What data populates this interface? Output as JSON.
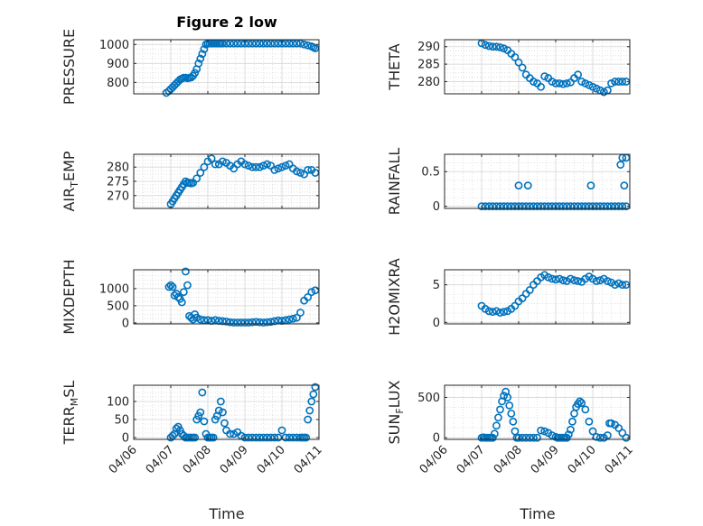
{
  "figure": {
    "title": "Figure 2 low",
    "xlabel": "Time"
  },
  "colors": {
    "marker": "#0072BD",
    "axis": "#262626",
    "grid": "#d6d6d6"
  },
  "chart_data": [
    {
      "type": "scatter",
      "ylabel": "PRESSURE",
      "ylim": [
        740,
        1025
      ],
      "yticks": [
        800,
        900,
        1000
      ],
      "xticks": [
        "04/06",
        "04/07",
        "04/08",
        "04/09",
        "04/10",
        "04/11"
      ],
      "show_xticklabels": false,
      "grid": true,
      "x": [
        6.88,
        6.95,
        7.0,
        7.05,
        7.1,
        7.15,
        7.2,
        7.25,
        7.3,
        7.35,
        7.4,
        7.45,
        7.5,
        7.55,
        7.6,
        7.65,
        7.7,
        7.75,
        7.8,
        7.85,
        7.9,
        7.95,
        8.0,
        8.05,
        8.1,
        8.15,
        8.2,
        8.25,
        8.3,
        8.35,
        8.4,
        8.5,
        8.6,
        8.7,
        8.8,
        8.9,
        9.0,
        9.1,
        9.2,
        9.3,
        9.4,
        9.5,
        9.6,
        9.7,
        9.8,
        9.9,
        10.0,
        10.1,
        10.2,
        10.3,
        10.4,
        10.5,
        10.6,
        10.7,
        10.8,
        10.85,
        10.9
      ],
      "y": [
        745,
        755,
        765,
        775,
        785,
        795,
        805,
        815,
        820,
        825,
        825,
        822,
        824,
        826,
        835,
        850,
        870,
        900,
        925,
        950,
        975,
        1000,
        1005,
        1005,
        1005,
        1005,
        1005,
        1005,
        1005,
        1005,
        1005,
        1005,
        1005,
        1005,
        1005,
        1005,
        1005,
        1005,
        1005,
        1005,
        1005,
        1005,
        1005,
        1005,
        1005,
        1005,
        1005,
        1005,
        1005,
        1005,
        1005,
        1005,
        1000,
        995,
        990,
        985,
        980
      ]
    },
    {
      "type": "scatter",
      "ylabel": "THETA",
      "ylim": [
        276.5,
        292
      ],
      "yticks": [
        280,
        285,
        290
      ],
      "xticks": [
        "04/06",
        "04/07",
        "04/08",
        "04/09",
        "04/10",
        "04/11"
      ],
      "show_xticklabels": false,
      "grid": true,
      "x": [
        7.0,
        7.1,
        7.2,
        7.3,
        7.4,
        7.5,
        7.6,
        7.7,
        7.8,
        7.9,
        8.0,
        8.1,
        8.2,
        8.3,
        8.4,
        8.5,
        8.6,
        8.7,
        8.8,
        8.9,
        9.0,
        9.1,
        9.2,
        9.3,
        9.4,
        9.5,
        9.6,
        9.7,
        9.8,
        9.9,
        10.0,
        10.1,
        10.2,
        10.3,
        10.4,
        10.5,
        10.6,
        10.7,
        10.8,
        10.9
      ],
      "y": [
        291,
        290.5,
        290.2,
        290,
        290,
        289.8,
        289.5,
        289,
        288,
        287,
        285.5,
        284,
        282,
        281,
        280,
        279.5,
        278.5,
        281.5,
        281,
        280,
        279.5,
        279.5,
        279.3,
        279.5,
        279.8,
        281,
        282,
        280,
        279.5,
        279,
        278.5,
        278,
        277.5,
        277,
        277.5,
        279.5,
        280,
        280,
        280,
        280
      ]
    },
    {
      "type": "scatter",
      "ylabel": "AIR_TEMP",
      "ylim": [
        265.5,
        284.5
      ],
      "yticks": [
        270,
        275,
        280
      ],
      "xticks": [
        "04/06",
        "04/07",
        "04/08",
        "04/09",
        "04/10",
        "04/11"
      ],
      "show_xticklabels": false,
      "grid": true,
      "x": [
        7.0,
        7.05,
        7.1,
        7.15,
        7.2,
        7.25,
        7.3,
        7.35,
        7.4,
        7.45,
        7.5,
        7.55,
        7.6,
        7.7,
        7.8,
        7.9,
        8.0,
        8.1,
        8.2,
        8.3,
        8.4,
        8.5,
        8.6,
        8.7,
        8.8,
        8.9,
        9.0,
        9.1,
        9.2,
        9.3,
        9.4,
        9.5,
        9.6,
        9.7,
        9.8,
        9.9,
        10.0,
        10.1,
        10.2,
        10.3,
        10.4,
        10.5,
        10.6,
        10.7,
        10.8,
        10.9
      ],
      "y": [
        267,
        268,
        269,
        270,
        271,
        272,
        273,
        274,
        275,
        274.5,
        274.5,
        274.3,
        274.5,
        276,
        278,
        280,
        282,
        283,
        281,
        281,
        282,
        281.5,
        280.5,
        279.5,
        281,
        282,
        281,
        280.5,
        280,
        280,
        280,
        280.5,
        281,
        280.5,
        279,
        279.5,
        280,
        280.5,
        281,
        279.5,
        278.5,
        278,
        277.5,
        279,
        279,
        278
      ]
    },
    {
      "type": "scatter",
      "ylabel": "RAINFALL",
      "ylim": [
        -0.03,
        0.75
      ],
      "yticks": [
        0,
        0.5
      ],
      "xticks": [
        "04/06",
        "04/07",
        "04/08",
        "04/09",
        "04/10",
        "04/11"
      ],
      "show_xticklabels": false,
      "grid": true,
      "x": [
        7.0,
        7.1,
        7.2,
        7.3,
        7.4,
        7.5,
        7.6,
        7.7,
        7.8,
        7.9,
        8.0,
        8.1,
        8.2,
        8.3,
        8.4,
        8.5,
        8.6,
        8.7,
        8.8,
        8.9,
        9.0,
        9.1,
        9.2,
        9.3,
        9.4,
        9.5,
        9.6,
        9.7,
        9.8,
        9.9,
        10.0,
        10.1,
        10.2,
        10.3,
        10.4,
        10.5,
        10.6,
        10.7,
        10.8,
        10.9,
        8.0,
        8.25,
        9.95,
        10.75,
        10.8,
        10.85,
        10.9
      ],
      "y": [
        0,
        0,
        0,
        0,
        0,
        0,
        0,
        0,
        0,
        0,
        0,
        0,
        0,
        0,
        0,
        0,
        0,
        0,
        0,
        0,
        0,
        0,
        0,
        0,
        0,
        0,
        0,
        0,
        0,
        0,
        0,
        0,
        0,
        0,
        0,
        0,
        0,
        0,
        0,
        0,
        0.3,
        0.3,
        0.3,
        0.6,
        0.7,
        0.3,
        0.7
      ]
    },
    {
      "type": "scatter",
      "ylabel": "MIXDEPTH",
      "ylim": [
        -30,
        1550
      ],
      "yticks": [
        0,
        500,
        1000
      ],
      "xticks": [
        "04/06",
        "04/07",
        "04/08",
        "04/09",
        "04/10",
        "04/11"
      ],
      "show_xticklabels": false,
      "grid": true,
      "x": [
        6.95,
        7.0,
        7.05,
        7.1,
        7.15,
        7.2,
        7.25,
        7.3,
        7.35,
        7.4,
        7.45,
        7.5,
        7.55,
        7.6,
        7.65,
        7.7,
        7.8,
        7.9,
        8.0,
        8.1,
        8.2,
        8.3,
        8.4,
        8.5,
        8.6,
        8.7,
        8.8,
        8.9,
        9.0,
        9.1,
        9.2,
        9.3,
        9.4,
        9.5,
        9.6,
        9.7,
        9.8,
        9.9,
        10.0,
        10.1,
        10.2,
        10.3,
        10.4,
        10.5,
        10.6,
        10.7,
        10.8,
        10.9
      ],
      "y": [
        1050,
        1100,
        1050,
        800,
        850,
        750,
        700,
        600,
        900,
        1500,
        1100,
        200,
        150,
        100,
        250,
        150,
        100,
        80,
        80,
        60,
        80,
        60,
        50,
        40,
        20,
        10,
        10,
        10,
        10,
        10,
        20,
        30,
        20,
        10,
        20,
        30,
        50,
        70,
        60,
        80,
        100,
        120,
        150,
        300,
        650,
        750,
        900,
        950
      ]
    },
    {
      "type": "scatter",
      "ylabel": "H2OMIXRA",
      "ylim": [
        -0.2,
        7
      ],
      "yticks": [
        0,
        5
      ],
      "xticks": [
        "04/06",
        "04/07",
        "04/08",
        "04/09",
        "04/10",
        "04/11"
      ],
      "show_xticklabels": false,
      "grid": true,
      "x": [
        7.0,
        7.1,
        7.2,
        7.3,
        7.4,
        7.5,
        7.6,
        7.7,
        7.8,
        7.9,
        8.0,
        8.1,
        8.2,
        8.3,
        8.4,
        8.5,
        8.6,
        8.7,
        8.8,
        8.9,
        9.0,
        9.1,
        9.2,
        9.3,
        9.4,
        9.5,
        9.6,
        9.7,
        9.8,
        9.9,
        10.0,
        10.1,
        10.2,
        10.3,
        10.4,
        10.5,
        10.6,
        10.7,
        10.8,
        10.9
      ],
      "y": [
        2.2,
        1.8,
        1.5,
        1.4,
        1.5,
        1.3,
        1.4,
        1.5,
        1.8,
        2.2,
        2.8,
        3.2,
        3.8,
        4.3,
        5.0,
        5.5,
        6.0,
        6.3,
        6.0,
        5.8,
        5.7,
        5.8,
        5.6,
        5.5,
        5.8,
        5.6,
        5.5,
        5.4,
        5.8,
        6.1,
        5.8,
        5.5,
        5.6,
        5.8,
        5.5,
        5.3,
        5.0,
        5.2,
        5.0,
        5.0
      ]
    },
    {
      "type": "scatter",
      "ylabel": "TERR_MSL",
      "ylim": [
        -5,
        145
      ],
      "yticks": [
        0,
        50,
        100
      ],
      "xticks": [
        "04/06",
        "04/07",
        "04/08",
        "04/09",
        "04/10",
        "04/11"
      ],
      "show_xticklabels": true,
      "grid": true,
      "x": [
        7.0,
        7.05,
        7.1,
        7.15,
        7.2,
        7.25,
        7.3,
        7.35,
        7.4,
        7.45,
        7.5,
        7.55,
        7.6,
        7.65,
        7.7,
        7.75,
        7.8,
        7.85,
        7.9,
        7.95,
        8.0,
        8.05,
        8.1,
        8.15,
        8.2,
        8.25,
        8.3,
        8.35,
        8.4,
        8.45,
        8.5,
        8.6,
        8.7,
        8.8,
        8.9,
        9.0,
        9.1,
        9.2,
        9.3,
        9.4,
        9.5,
        9.6,
        9.7,
        9.8,
        9.9,
        10.0,
        10.1,
        10.2,
        10.3,
        10.4,
        10.5,
        10.55,
        10.6,
        10.65,
        10.7,
        10.75,
        10.8,
        10.85,
        10.9
      ],
      "y": [
        0,
        5,
        10,
        25,
        30,
        20,
        10,
        5,
        0,
        0,
        0,
        0,
        0,
        0,
        50,
        60,
        70,
        125,
        45,
        10,
        0,
        0,
        0,
        0,
        50,
        60,
        75,
        100,
        70,
        40,
        20,
        10,
        10,
        15,
        5,
        0,
        0,
        0,
        0,
        0,
        0,
        0,
        0,
        0,
        0,
        20,
        0,
        0,
        0,
        0,
        0,
        0,
        0,
        0,
        50,
        75,
        100,
        120,
        140
      ]
    },
    {
      "type": "scatter",
      "ylabel": "SUN_FLUX",
      "ylim": [
        -20,
        650
      ],
      "yticks": [
        0,
        500
      ],
      "xticks": [
        "04/06",
        "04/07",
        "04/08",
        "04/09",
        "04/10",
        "04/11"
      ],
      "show_xticklabels": true,
      "grid": true,
      "x": [
        7.0,
        7.05,
        7.1,
        7.15,
        7.2,
        7.25,
        7.3,
        7.35,
        7.4,
        7.45,
        7.5,
        7.55,
        7.6,
        7.65,
        7.7,
        7.75,
        7.8,
        7.85,
        7.9,
        7.95,
        8.0,
        8.1,
        8.2,
        8.3,
        8.4,
        8.5,
        8.6,
        8.7,
        8.8,
        8.9,
        9.0,
        9.05,
        9.1,
        9.15,
        9.2,
        9.25,
        9.3,
        9.35,
        9.4,
        9.45,
        9.5,
        9.55,
        9.6,
        9.65,
        9.7,
        9.8,
        9.9,
        10.0,
        10.1,
        10.2,
        10.3,
        10.4,
        10.45,
        10.5,
        10.6,
        10.7,
        10.8,
        10.9
      ],
      "y": [
        0,
        5,
        0,
        0,
        0,
        0,
        0,
        50,
        150,
        250,
        350,
        450,
        520,
        570,
        500,
        400,
        300,
        200,
        80,
        0,
        0,
        0,
        0,
        0,
        0,
        0,
        90,
        80,
        60,
        30,
        10,
        0,
        0,
        0,
        0,
        0,
        0,
        40,
        100,
        200,
        300,
        380,
        420,
        450,
        430,
        350,
        200,
        80,
        10,
        0,
        0,
        30,
        180,
        180,
        160,
        120,
        60,
        0
      ]
    }
  ]
}
